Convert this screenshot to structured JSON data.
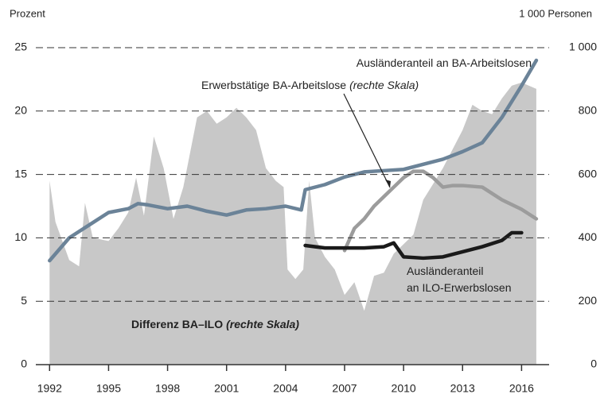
{
  "chart_data": {
    "type": "line",
    "left_axis_label": "Prozent",
    "right_axis_label": "1 000 Personen",
    "xlim": [
      1991.3,
      2017.4
    ],
    "xticks": [
      1992,
      1995,
      1998,
      2001,
      2004,
      2007,
      2010,
      2013,
      2016
    ],
    "ylim": [
      0,
      25
    ],
    "yticks": [
      0,
      5,
      10,
      15,
      20,
      25
    ],
    "y2lim": [
      0,
      1000
    ],
    "y2ticks": [
      0,
      200,
      400,
      600,
      800,
      {
        "value": 1000,
        "label": "1 000"
      }
    ],
    "grid": true,
    "series": [
      {
        "name": "Differenz BA–ILO",
        "note": "(rechte Skala)",
        "type": "area",
        "axis": "y2",
        "color": "#c8c8c8",
        "x": [
          1992,
          1992.3,
          1993,
          1993.5,
          1993.8,
          1994.2,
          1995,
          1995.5,
          1996,
          1996.4,
          1996.8,
          1997.3,
          1997.8,
          1998.3,
          1998.8,
          1999.5,
          2000,
          2000.5,
          2001,
          2001.5,
          2002,
          2002.5,
          2003,
          2003.5,
          2003.9,
          2004.1,
          2004.5,
          2004.9,
          2005.2,
          2005.5,
          2006,
          2006.5,
          2007,
          2007.5,
          2008,
          2008.5,
          2009,
          2009.5,
          2010,
          2010.5,
          2011,
          2011.5,
          2012,
          2012.5,
          2013,
          2013.5,
          2014,
          2014.5,
          2015,
          2015.5,
          2016,
          2016.75
        ],
        "values": [
          580,
          450,
          330,
          310,
          510,
          400,
          390,
          430,
          480,
          590,
          470,
          720,
          620,
          460,
          560,
          780,
          800,
          760,
          780,
          810,
          780,
          740,
          620,
          580,
          560,
          300,
          270,
          300,
          580,
          400,
          340,
          300,
          220,
          260,
          170,
          280,
          290,
          350,
          380,
          410,
          520,
          570,
          620,
          680,
          740,
          820,
          800,
          790,
          840,
          880,
          890,
          870
        ]
      },
      {
        "name": "Ausländeranteil an BA-Arbeitslosen",
        "type": "line",
        "axis": "y",
        "color": "#6b8398",
        "x": [
          1992,
          1993,
          1993.5,
          1994,
          1995,
          1996,
          1996.5,
          1997,
          1998,
          1999,
          2000,
          2001,
          2002,
          2003,
          2004,
          2004.8,
          2005,
          2006,
          2007,
          2008,
          2009,
          2010,
          2011,
          2012,
          2013,
          2014,
          2015,
          2016,
          2016.75
        ],
        "values": [
          8.2,
          10,
          10.5,
          11,
          12,
          12.3,
          12.7,
          12.6,
          12.3,
          12.5,
          12.1,
          11.8,
          12.2,
          12.3,
          12.5,
          12.2,
          13.8,
          14.2,
          14.8,
          15.2,
          15.3,
          15.4,
          15.8,
          16.2,
          16.8,
          17.5,
          19.5,
          22,
          24
        ]
      },
      {
        "name": "Erwerbstätige BA-Arbeitslose",
        "note": "(rechte Skala)",
        "type": "line",
        "axis": "y2",
        "color": "#9c9c9c",
        "x": [
          2007,
          2007.5,
          2008,
          2008.5,
          2009,
          2009.5,
          2010,
          2010.5,
          2011,
          2011.5,
          2012,
          2012.5,
          2013,
          2014,
          2015,
          2016,
          2016.75
        ],
        "values": [
          360,
          430,
          460,
          500,
          530,
          560,
          590,
          610,
          610,
          590,
          560,
          565,
          565,
          560,
          520,
          490,
          460
        ]
      },
      {
        "name": "Ausländeranteil an ILO-Erwerbslosen",
        "type": "line",
        "axis": "y",
        "color": "#1a1a1a",
        "x": [
          2005,
          2006,
          2007,
          2008,
          2009,
          2009.5,
          2010,
          2011,
          2012,
          2013,
          2014,
          2015,
          2015.5,
          2016
        ],
        "values": [
          9.4,
          9.2,
          9.2,
          9.2,
          9.3,
          9.6,
          8.5,
          8.4,
          8.5,
          8.9,
          9.3,
          9.8,
          10.4,
          10.4
        ]
      }
    ]
  }
}
